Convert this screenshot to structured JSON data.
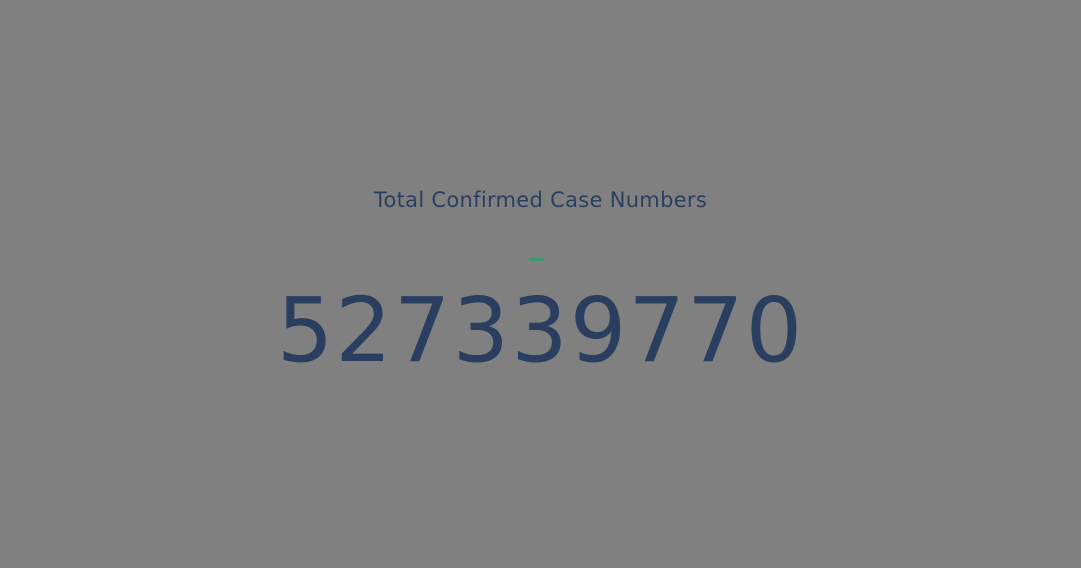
{
  "chart_data": {
    "type": "indicator",
    "title": "Total Confirmed Case Numbers",
    "value": 527339770,
    "value_text": "527339770",
    "delta_color": "#3d9970",
    "number_color": "#2a3f5f",
    "background": "#808080"
  }
}
